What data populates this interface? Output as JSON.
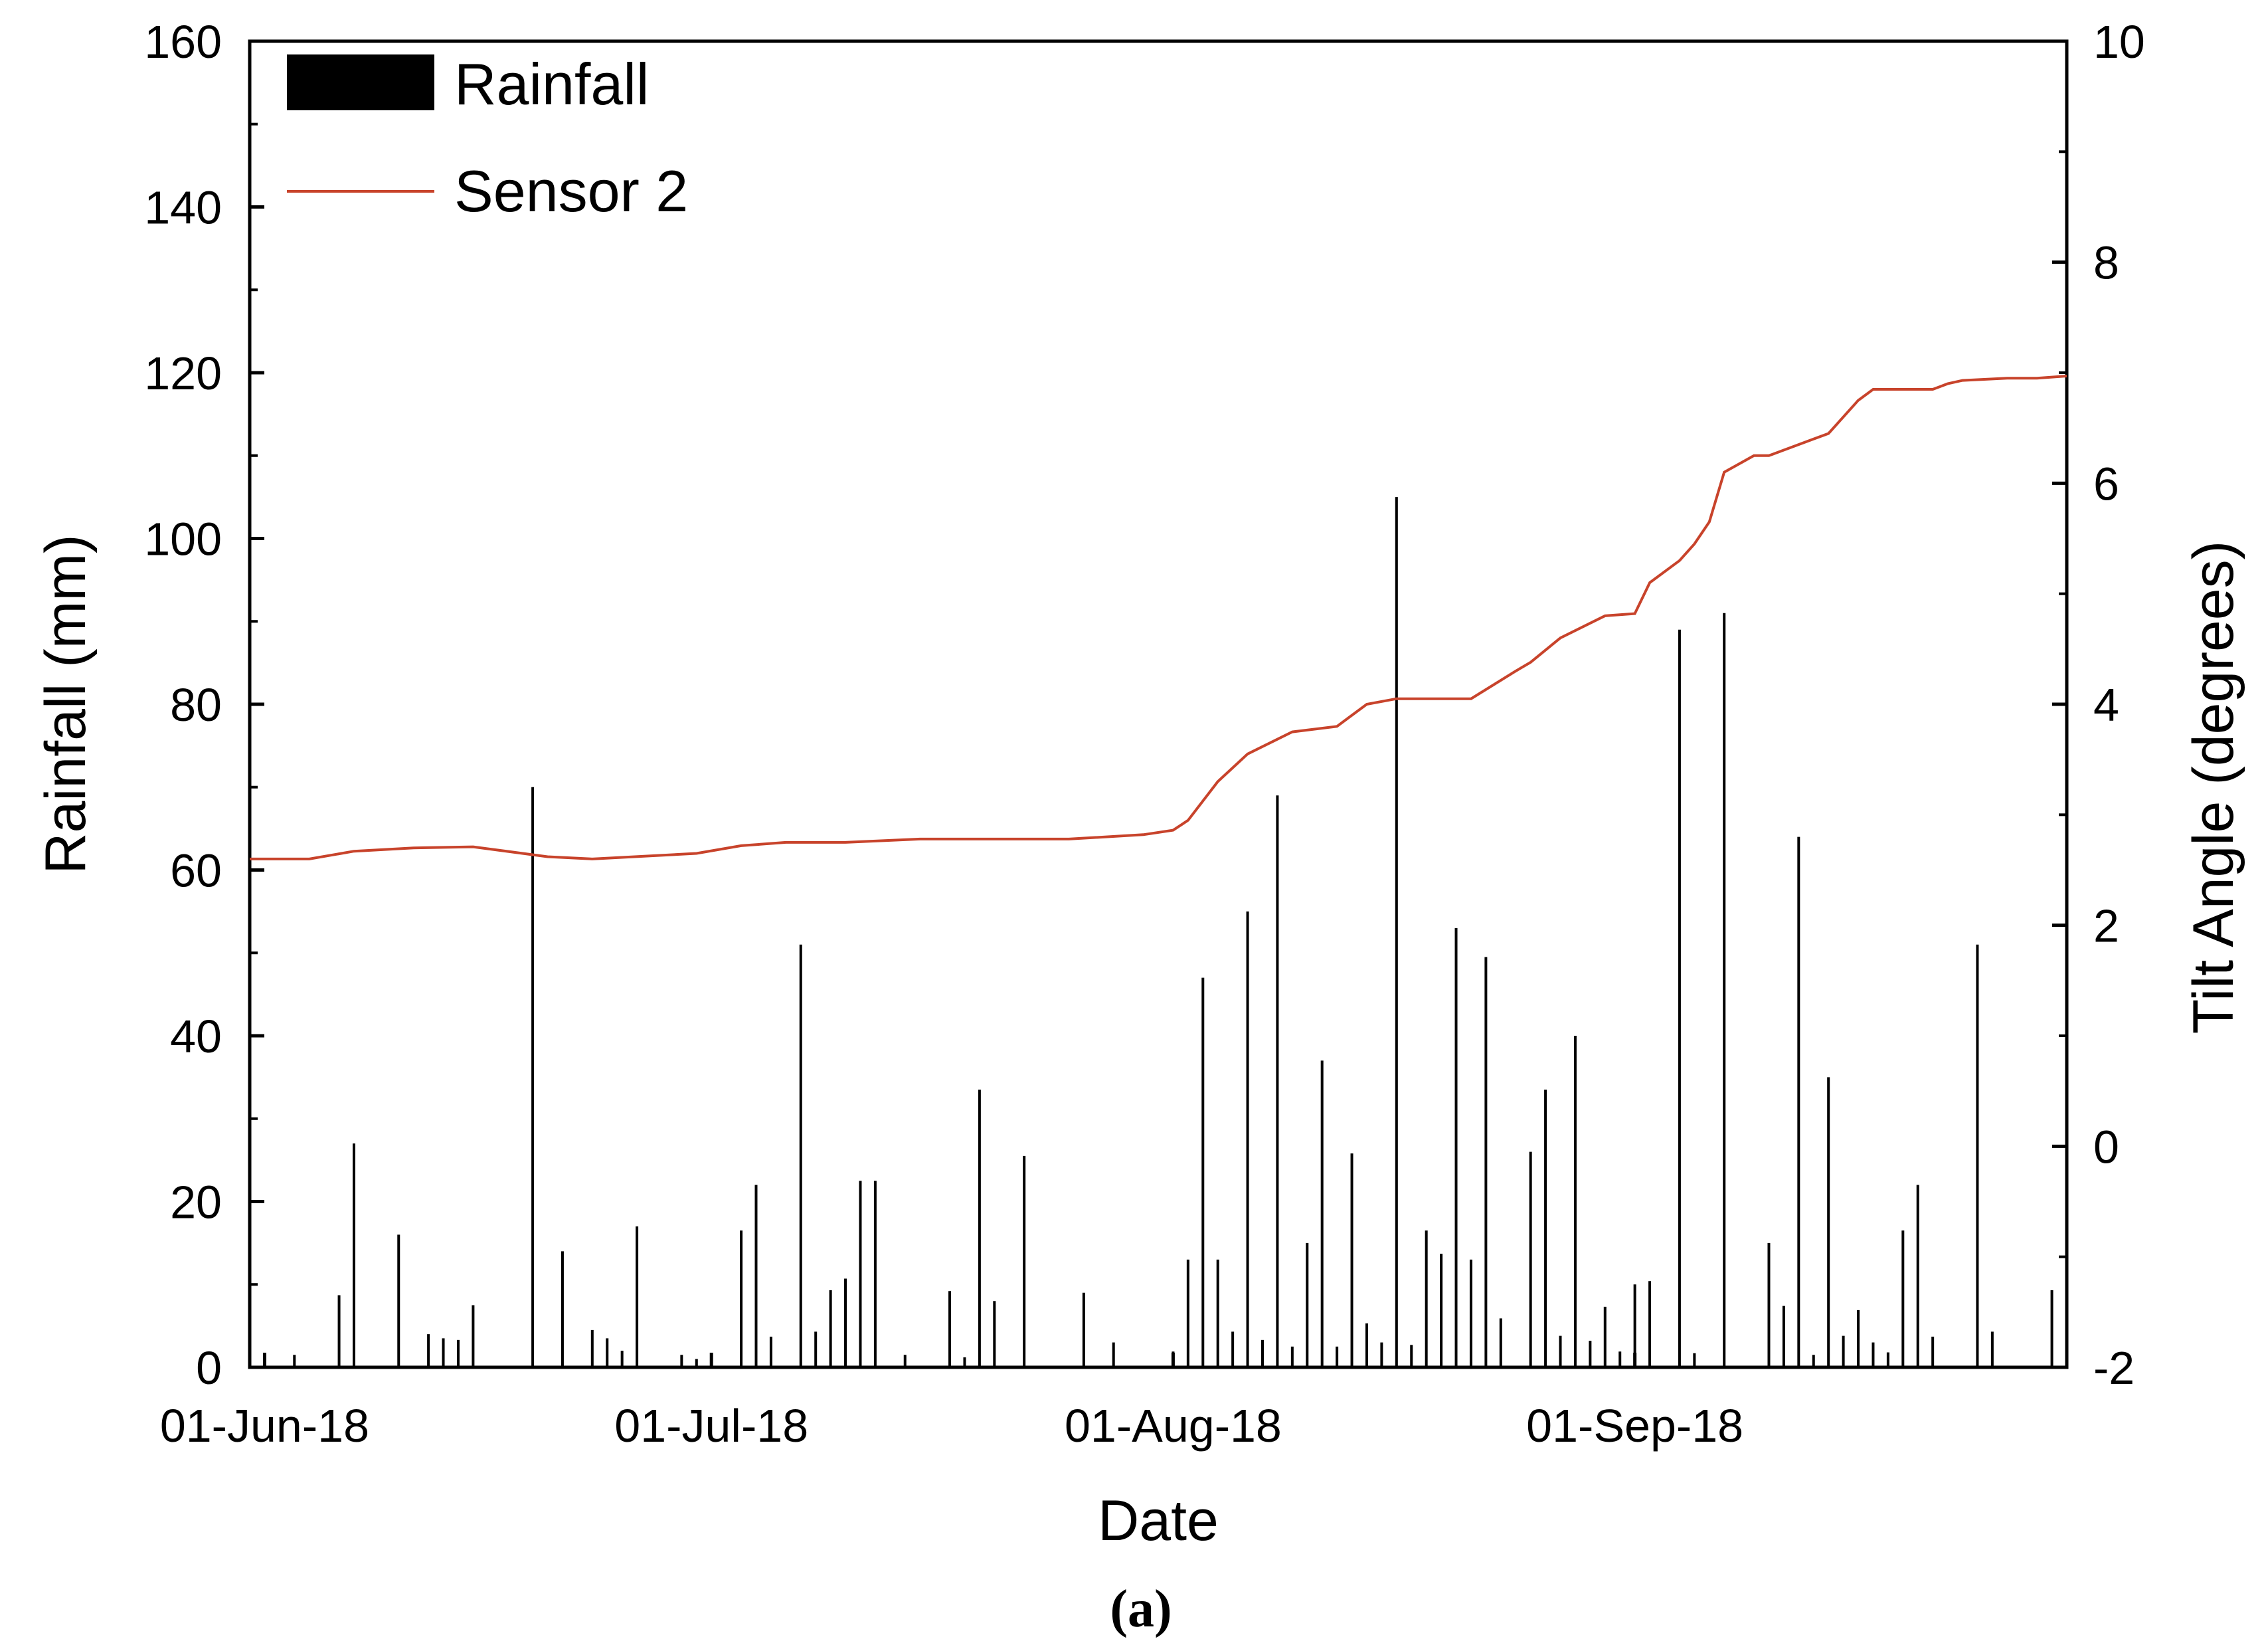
{
  "chart_data": {
    "type": "bar+line",
    "xlabel": "Date",
    "ylabel_left": "Rainfall (mm)",
    "ylabel_right": "Tilt Angle (degrees)",
    "caption": "(a)",
    "x_range": [
      "2018-05-31",
      "2018-09-30"
    ],
    "x_ticks": [
      {
        "date": "2018-06-01",
        "label": "01-Jun-18"
      },
      {
        "date": "2018-07-01",
        "label": "01-Jul-18"
      },
      {
        "date": "2018-08-01",
        "label": "01-Aug-18"
      },
      {
        "date": "2018-09-01",
        "label": "01-Sep-18"
      }
    ],
    "y_left": {
      "min": 0,
      "max": 160,
      "ticks": [
        0,
        20,
        40,
        60,
        80,
        100,
        120,
        140,
        160
      ]
    },
    "y_right": {
      "min": -2,
      "max": 10,
      "ticks": [
        -2,
        0,
        2,
        4,
        6,
        8,
        10
      ]
    },
    "legend": {
      "position": "top-left",
      "entries": [
        "Rainfall",
        "Sensor 2"
      ]
    },
    "series_colors": {
      "rainfall": "#000000",
      "sensor": "#c8432b"
    },
    "rainfall": {
      "name": "Rainfall",
      "dates": [
        "2018-06-03",
        "2018-06-06",
        "2018-06-07",
        "2018-06-10",
        "2018-06-12",
        "2018-06-13",
        "2018-06-14",
        "2018-06-15",
        "2018-06-19",
        "2018-06-21",
        "2018-06-23",
        "2018-06-24",
        "2018-06-25",
        "2018-06-26",
        "2018-06-29",
        "2018-06-30",
        "2018-07-03",
        "2018-07-04",
        "2018-07-05",
        "2018-07-07",
        "2018-07-08",
        "2018-07-09",
        "2018-07-10",
        "2018-07-11",
        "2018-07-12",
        "2018-07-14",
        "2018-07-17",
        "2018-07-18",
        "2018-07-19",
        "2018-07-20",
        "2018-07-22",
        "2018-07-26",
        "2018-07-28",
        "2018-08-01",
        "2018-08-02",
        "2018-08-03",
        "2018-08-04",
        "2018-08-05",
        "2018-08-06",
        "2018-08-07",
        "2018-08-08",
        "2018-08-09",
        "2018-08-10",
        "2018-08-11",
        "2018-08-12",
        "2018-08-13",
        "2018-08-14",
        "2018-08-15",
        "2018-08-16",
        "2018-08-17",
        "2018-08-18",
        "2018-08-19",
        "2018-08-20",
        "2018-08-21",
        "2018-08-22",
        "2018-08-23",
        "2018-08-25",
        "2018-08-26",
        "2018-08-27",
        "2018-08-28",
        "2018-08-29",
        "2018-08-30",
        "2018-08-31",
        "2018-09-01",
        "2018-09-02",
        "2018-09-04",
        "2018-09-05",
        "2018-09-07",
        "2018-09-10",
        "2018-09-11",
        "2018-09-12",
        "2018-09-13",
        "2018-09-14",
        "2018-09-15",
        "2018-09-16",
        "2018-09-17",
        "2018-09-18",
        "2018-09-19",
        "2018-09-20",
        "2018-09-21",
        "2018-09-24",
        "2018-09-25",
        "2018-09-29",
        "2018-09-30"
      ],
      "values": [
        1.5,
        8.7,
        27,
        16,
        4,
        3.5,
        3.3,
        7.5,
        70,
        14,
        4.5,
        3.5,
        2,
        17,
        1.5,
        1,
        16.5,
        22,
        3.7,
        51,
        4.3,
        9.3,
        10.7,
        22.5,
        22.5,
        1.5,
        9.2,
        1.2,
        33.5,
        8,
        25.5,
        9,
        3,
        1.9,
        13,
        47,
        13,
        4.3,
        55,
        3.3,
        69,
        2.5,
        15,
        37,
        2.5,
        25.8,
        5.3,
        3,
        105,
        2.7,
        16.5,
        13.7,
        53,
        13,
        49.5,
        5.9,
        26,
        33.5,
        3.8,
        40,
        3.2,
        7.3,
        1.9,
        10,
        10.4,
        89,
        1.7,
        91,
        15,
        7.4,
        64,
        1.5,
        35,
        3.8,
        6.9,
        3,
        1.8,
        16.5,
        22,
        3.7,
        51,
        4.3,
        9.3,
        10.7
      ],
      "note": ""
    },
    "sensor": {
      "name": "Sensor 2",
      "dates": [
        "2018-05-31",
        "2018-06-04",
        "2018-06-07",
        "2018-06-11",
        "2018-06-15",
        "2018-06-20",
        "2018-06-23",
        "2018-06-30",
        "2018-07-03",
        "2018-07-06",
        "2018-07-10",
        "2018-07-15",
        "2018-07-20",
        "2018-07-25",
        "2018-07-30",
        "2018-08-01",
        "2018-08-02",
        "2018-08-04",
        "2018-08-06",
        "2018-08-09",
        "2018-08-12",
        "2018-08-14",
        "2018-08-16",
        "2018-08-18",
        "2018-08-21",
        "2018-08-24",
        "2018-08-25",
        "2018-08-27",
        "2018-08-30",
        "2018-09-01",
        "2018-09-02",
        "2018-09-04",
        "2018-09-05",
        "2018-09-06",
        "2018-09-07",
        "2018-09-09",
        "2018-09-10",
        "2018-09-13",
        "2018-09-14",
        "2018-09-16",
        "2018-09-17",
        "2018-09-18",
        "2018-09-21",
        "2018-09-22",
        "2018-09-23",
        "2018-09-26",
        "2018-09-28",
        "2018-09-30"
      ],
      "values": [
        2.6,
        2.6,
        2.67,
        2.7,
        2.71,
        2.62,
        2.6,
        2.65,
        2.72,
        2.75,
        2.75,
        2.78,
        2.78,
        2.78,
        2.82,
        2.86,
        2.95,
        3.3,
        3.55,
        3.75,
        3.8,
        4.0,
        4.05,
        4.05,
        4.05,
        4.3,
        4.38,
        4.6,
        4.8,
        4.82,
        5.1,
        5.3,
        5.45,
        5.65,
        6.1,
        6.25,
        6.25,
        6.4,
        6.45,
        6.75,
        6.85,
        6.85,
        6.85,
        6.9,
        6.93,
        6.95,
        6.95,
        6.97
      ]
    }
  }
}
